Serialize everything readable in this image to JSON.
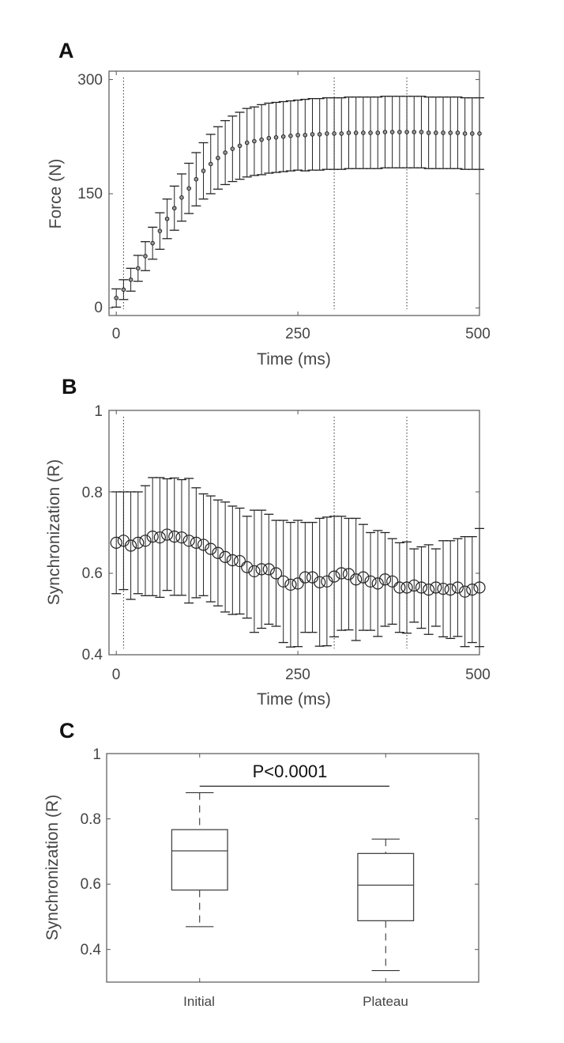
{
  "chart_data": [
    {
      "panel": "A",
      "type": "scatter",
      "xlabel": "Time (ms)",
      "ylabel": "Force (N)",
      "xlim": [
        -10,
        500
      ],
      "ylim": [
        -10,
        311
      ],
      "xticks": [
        "0",
        "250",
        "500"
      ],
      "yticks": [
        "0",
        "150",
        "300"
      ],
      "vlines": [
        10,
        300,
        400
      ],
      "x_step": 10,
      "mean": [
        13,
        24,
        37,
        52,
        68,
        85,
        101,
        117,
        131,
        145,
        157,
        169,
        180,
        189,
        197,
        204,
        209,
        213,
        217,
        219,
        221,
        223,
        224,
        225,
        226,
        227,
        227,
        228,
        228,
        229,
        229,
        229,
        230,
        230,
        230,
        230,
        230,
        231,
        231,
        231,
        231,
        231,
        231,
        230,
        230,
        230,
        230,
        230,
        229,
        229,
        229
      ],
      "sd": [
        12,
        13,
        15,
        17,
        19,
        21,
        24,
        26,
        29,
        31,
        33,
        35,
        37,
        39,
        41,
        42,
        43,
        44,
        45,
        45,
        46,
        46,
        46,
        46,
        46,
        46,
        47,
        47,
        47,
        47,
        47,
        47,
        47,
        47,
        47,
        47,
        47,
        47,
        47,
        47,
        47,
        47,
        47,
        47,
        47,
        47,
        47,
        47,
        47,
        47,
        47
      ]
    },
    {
      "panel": "B",
      "type": "scatter",
      "xlabel": "Time (ms)",
      "ylabel": "Synchronization (R)",
      "xlim": [
        -10,
        500
      ],
      "ylim": [
        0.4,
        1
      ],
      "xticks": [
        "0",
        "250",
        "500"
      ],
      "yticks": [
        "0.4",
        "0.6",
        "0.8",
        "1"
      ],
      "vlines": [
        10,
        300,
        400
      ],
      "x_step": 10,
      "mean": [
        0.675,
        0.68,
        0.668,
        0.675,
        0.68,
        0.69,
        0.688,
        0.695,
        0.69,
        0.688,
        0.68,
        0.675,
        0.67,
        0.66,
        0.65,
        0.64,
        0.632,
        0.63,
        0.615,
        0.605,
        0.61,
        0.61,
        0.6,
        0.58,
        0.572,
        0.575,
        0.59,
        0.59,
        0.578,
        0.58,
        0.592,
        0.6,
        0.598,
        0.585,
        0.59,
        0.58,
        0.575,
        0.585,
        0.58,
        0.565,
        0.565,
        0.57,
        0.565,
        0.56,
        0.565,
        0.562,
        0.56,
        0.565,
        0.555,
        0.56,
        0.565
      ],
      "sd": [
        0.125,
        0.12,
        0.132,
        0.125,
        0.135,
        0.145,
        0.147,
        0.137,
        0.144,
        0.142,
        0.153,
        0.135,
        0.125,
        0.13,
        0.13,
        0.135,
        0.133,
        0.13,
        0.125,
        0.15,
        0.145,
        0.135,
        0.13,
        0.15,
        0.153,
        0.155,
        0.135,
        0.135,
        0.157,
        0.158,
        0.148,
        0.14,
        0.137,
        0.15,
        0.13,
        0.12,
        0.13,
        0.115,
        0.105,
        0.11,
        0.112,
        0.09,
        0.1,
        0.11,
        0.095,
        0.118,
        0.12,
        0.12,
        0.135,
        0.13,
        0.145
      ]
    },
    {
      "panel": "C",
      "type": "box",
      "ylabel": "Synchronization (R)",
      "ylim": [
        0.3,
        1
      ],
      "yticks": [
        "0.4",
        "0.6",
        "0.8",
        "1"
      ],
      "categories": [
        "Initial",
        "Plateau"
      ],
      "boxes": [
        {
          "whisker_low": 0.47,
          "q1": 0.582,
          "median": 0.702,
          "q3": 0.767,
          "whisker_high": 0.88
        },
        {
          "whisker_low": 0.335,
          "q1": 0.488,
          "median": 0.597,
          "q3": 0.694,
          "whisker_high": 0.738
        }
      ],
      "significance": {
        "text": "P<0.0001",
        "y": 0.9
      }
    }
  ]
}
